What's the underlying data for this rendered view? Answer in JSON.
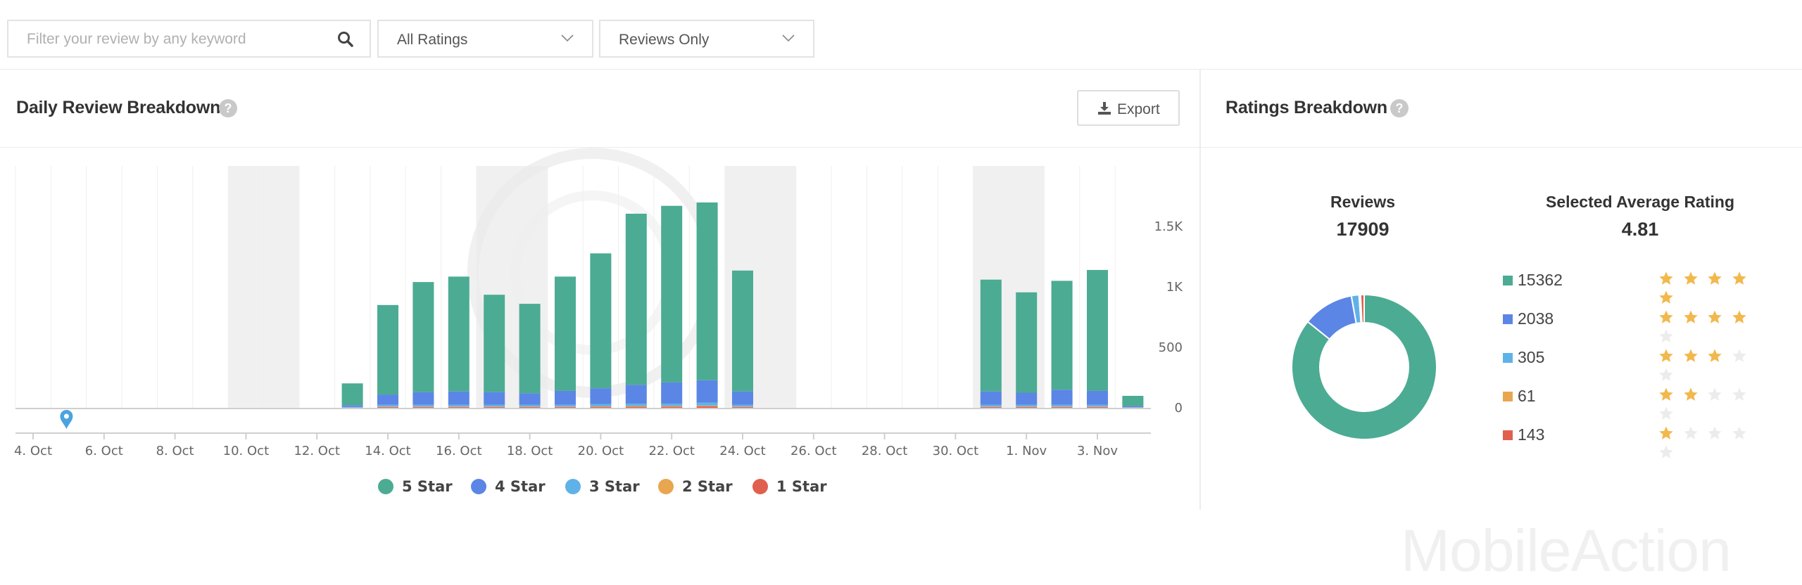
{
  "filters": {
    "search_placeholder": "Filter your review by any keyword",
    "ratings_select": "All Ratings",
    "reviews_select": "Reviews Only"
  },
  "daily": {
    "title": "Daily Review Breakdown",
    "export_label": "Export"
  },
  "ratings_breakdown": {
    "title": "Ratings Breakdown",
    "reviews_label": "Reviews",
    "reviews_value": "17909",
    "avg_label": "Selected Average Rating",
    "avg_value": "4.81",
    "rows": [
      {
        "count": "15362",
        "stars": 5,
        "color": "#4cab93"
      },
      {
        "count": "2038",
        "stars": 4,
        "color": "#5b86e5"
      },
      {
        "count": "305",
        "stars": 3,
        "color": "#5fb2e8"
      },
      {
        "count": "61",
        "stars": 2,
        "color": "#e8a651"
      },
      {
        "count": "143",
        "stars": 1,
        "color": "#e06050"
      }
    ]
  },
  "watermark": "MobileAction",
  "chart_data": {
    "type": "bar",
    "stacked": true,
    "x": [
      "4. Oct",
      "5. Oct",
      "6. Oct",
      "7. Oct",
      "8. Oct",
      "9. Oct",
      "10. Oct",
      "11. Oct",
      "12. Oct",
      "13. Oct",
      "14. Oct",
      "15. Oct",
      "16. Oct",
      "17. Oct",
      "18. Oct",
      "19. Oct",
      "20. Oct",
      "21. Oct",
      "22. Oct",
      "23. Oct",
      "24. Oct",
      "25. Oct",
      "26. Oct",
      "27. Oct",
      "28. Oct",
      "29. Oct",
      "30. Oct",
      "31. Oct",
      "1. Nov",
      "2. Nov",
      "3. Nov",
      "4. Nov"
    ],
    "x_tick_labels": [
      "4. Oct",
      "6. Oct",
      "8. Oct",
      "10. Oct",
      "12. Oct",
      "14. Oct",
      "16. Oct",
      "18. Oct",
      "20. Oct",
      "22. Oct",
      "24. Oct",
      "26. Oct",
      "28. Oct",
      "30. Oct",
      "1. Nov",
      "3. Nov"
    ],
    "y_ticks": [
      0,
      500,
      1000,
      1500
    ],
    "y_tick_labels": [
      "0",
      "500",
      "1K",
      "1.5K"
    ],
    "ylim": [
      0,
      2000
    ],
    "weekend_bands": [
      [
        "10. Oct",
        "11. Oct"
      ],
      [
        "17. Oct",
        "18. Oct"
      ],
      [
        "24. Oct",
        "25. Oct"
      ],
      [
        "31. Oct",
        "1. Nov"
      ]
    ],
    "colors": {
      "5 Star": "#4cab93",
      "4 Star": "#5b86e5",
      "3 Star": "#5fb2e8",
      "2 Star": "#e8a651",
      "1 Star": "#e06050"
    },
    "series": [
      {
        "name": "5 Star",
        "values": [
          0,
          0,
          0,
          0,
          0,
          0,
          0,
          0,
          0,
          180,
          740,
          910,
          950,
          805,
          740,
          945,
          1115,
          1415,
          1460,
          1470,
          1000,
          0,
          0,
          0,
          0,
          0,
          0,
          925,
          830,
          900,
          1000,
          85
        ]
      },
      {
        "name": "4 Star",
        "values": [
          0,
          0,
          0,
          0,
          0,
          0,
          0,
          0,
          0,
          15,
          85,
          105,
          110,
          105,
          95,
          115,
          130,
          155,
          175,
          185,
          110,
          0,
          0,
          0,
          0,
          0,
          0,
          110,
          100,
          125,
          115,
          10
        ]
      },
      {
        "name": "3 Star",
        "values": [
          0,
          0,
          0,
          0,
          0,
          0,
          0,
          0,
          0,
          5,
          15,
          15,
          15,
          15,
          15,
          15,
          20,
          20,
          20,
          25,
          15,
          0,
          0,
          0,
          0,
          0,
          0,
          15,
          15,
          15,
          15,
          2
        ]
      },
      {
        "name": "2 Star",
        "values": [
          0,
          0,
          0,
          0,
          0,
          0,
          0,
          0,
          0,
          1,
          3,
          3,
          3,
          3,
          3,
          3,
          4,
          5,
          5,
          6,
          3,
          0,
          0,
          0,
          0,
          0,
          0,
          3,
          3,
          3,
          3,
          1
        ]
      },
      {
        "name": "1 Star",
        "values": [
          0,
          0,
          0,
          0,
          0,
          0,
          0,
          0,
          0,
          1,
          7,
          7,
          7,
          7,
          7,
          7,
          8,
          10,
          10,
          12,
          7,
          0,
          0,
          0,
          0,
          0,
          0,
          7,
          7,
          7,
          7,
          1
        ]
      }
    ],
    "marker": {
      "x": "5. Oct",
      "icon": "map-pin-icon"
    },
    "legend": {
      "items": [
        "5 Star",
        "4 Star",
        "3 Star",
        "2 Star",
        "1 Star"
      ],
      "placement": "bottom-center"
    }
  }
}
